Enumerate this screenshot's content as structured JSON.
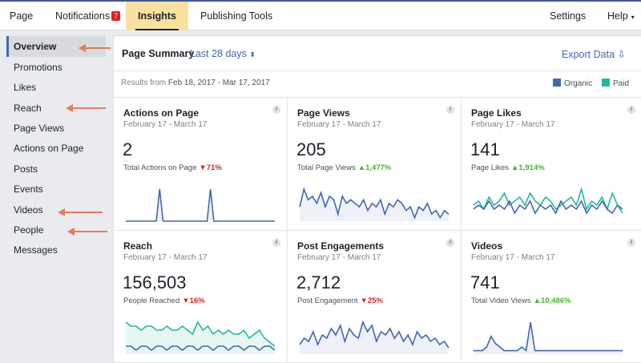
{
  "colors": {
    "organic": "#4267b2",
    "paid": "#1eb99b",
    "down": "#e02020",
    "up": "#42b72a",
    "annotation_arrow": "#e8795a"
  },
  "topnav": {
    "tabs": [
      {
        "label": "Page"
      },
      {
        "label": "Notifications",
        "badge": "7"
      },
      {
        "label": "Insights",
        "active": true
      },
      {
        "label": "Publishing Tools"
      }
    ],
    "settings_label": "Settings",
    "help_label": "Help",
    "help_caret": "▾"
  },
  "sidebar": {
    "items": [
      {
        "label": "Overview",
        "active": true
      },
      {
        "label": "Promotions"
      },
      {
        "label": "Likes"
      },
      {
        "label": "Reach"
      },
      {
        "label": "Page Views"
      },
      {
        "label": "Actions on Page"
      },
      {
        "label": "Posts"
      },
      {
        "label": "Events"
      },
      {
        "label": "Videos"
      },
      {
        "label": "People"
      },
      {
        "label": "Messages"
      }
    ]
  },
  "summary": {
    "title": "Page Summary",
    "range_label": "Last 28 days",
    "range_caret": "⬍",
    "export_label": "Export Data",
    "export_icon": "⇩",
    "results_prefix": "Results from ",
    "results_range": "Feb 18, 2017 - Mar 17, 2017",
    "legend": [
      {
        "label": "Organic"
      },
      {
        "label": "Paid"
      }
    ]
  },
  "cards": [
    {
      "title": "Actions on Page",
      "date": "February 17 - March 17",
      "value": "2",
      "label": "Total Actions on Page",
      "change": "71%",
      "direction": "down",
      "arrow": "▼",
      "organic": [
        0,
        0,
        0,
        0,
        0,
        0,
        0,
        0,
        0,
        0,
        1,
        0,
        0,
        0,
        0,
        0,
        0,
        0,
        0,
        0,
        0,
        0,
        0,
        0,
        0,
        1,
        0,
        0,
        0,
        0,
        0,
        0,
        0,
        0,
        0,
        0,
        0,
        0,
        0,
        0,
        0,
        0,
        0,
        0,
        0
      ]
    },
    {
      "title": "Page Views",
      "date": "February 17 - March 17",
      "value": "205",
      "label": "Total Page Views",
      "change": "1,477%",
      "direction": "up",
      "arrow": "▲",
      "organic": [
        4,
        9,
        6,
        7,
        5,
        8,
        4,
        7,
        6,
        2,
        7,
        5,
        6,
        5,
        4,
        6,
        3,
        5,
        4,
        6,
        2,
        5,
        4,
        6,
        5,
        3,
        4,
        1,
        4,
        3,
        5,
        2,
        3,
        1,
        3,
        2
      ]
    },
    {
      "title": "Page Likes",
      "date": "February 17 - March 17",
      "value": "141",
      "label": "Page Likes",
      "change": "1,914%",
      "direction": "up",
      "arrow": "▲",
      "organic": [
        3,
        4,
        3,
        5,
        3,
        4,
        3,
        5,
        2,
        4,
        3,
        5,
        2,
        4,
        3,
        4,
        2,
        5,
        3,
        4,
        3,
        5,
        2,
        4,
        3,
        5,
        3,
        2,
        4,
        3
      ],
      "paid": [
        4,
        5,
        3,
        6,
        4,
        5,
        7,
        4,
        5,
        6,
        4,
        7,
        5,
        4,
        6,
        5,
        3,
        4,
        5,
        6,
        4,
        8,
        3,
        5,
        4,
        6,
        3,
        7,
        4,
        2
      ]
    },
    {
      "title": "Reach",
      "date": "February 17 - March 17",
      "value": "156,503",
      "label": "People Reached",
      "change": "16%",
      "direction": "down",
      "arrow": "▼",
      "organic": [
        2,
        2,
        1,
        2,
        2,
        1,
        2,
        2,
        1,
        2,
        2,
        1,
        2,
        2,
        1,
        2,
        2,
        1,
        2,
        2,
        1,
        2,
        2,
        1,
        2,
        2,
        1,
        2,
        2,
        1
      ],
      "paid": [
        8,
        7,
        7,
        6,
        7,
        7,
        6,
        6,
        7,
        6,
        6,
        7,
        6,
        5,
        8,
        6,
        7,
        5,
        6,
        5,
        6,
        5,
        5,
        6,
        4,
        5,
        6,
        4,
        3,
        2
      ]
    },
    {
      "title": "Post Engagements",
      "date": "February 17 - March 17",
      "value": "2,712",
      "label": "Post Engagement",
      "change": "25%",
      "direction": "down",
      "arrow": "▼",
      "organic": [
        3,
        5,
        4,
        7,
        3,
        6,
        5,
        8,
        6,
        9,
        4,
        8,
        6,
        5,
        10,
        7,
        9,
        4,
        7,
        6,
        8,
        5,
        7,
        4,
        6,
        3,
        7,
        5,
        6,
        4,
        5,
        3,
        4,
        2
      ]
    },
    {
      "title": "Videos",
      "date": "February 17 - March 17",
      "value": "741",
      "label": "Total Video Views",
      "change": "10,486%",
      "direction": "up",
      "arrow": "▲",
      "organic": [
        1,
        1,
        1,
        2,
        5,
        3,
        2,
        1,
        1,
        1,
        1,
        2,
        1,
        9,
        1,
        1,
        1,
        1,
        1,
        1,
        1,
        1,
        1,
        1,
        1,
        1,
        1,
        1,
        1,
        1,
        1,
        1,
        1,
        1,
        1
      ]
    }
  ]
}
